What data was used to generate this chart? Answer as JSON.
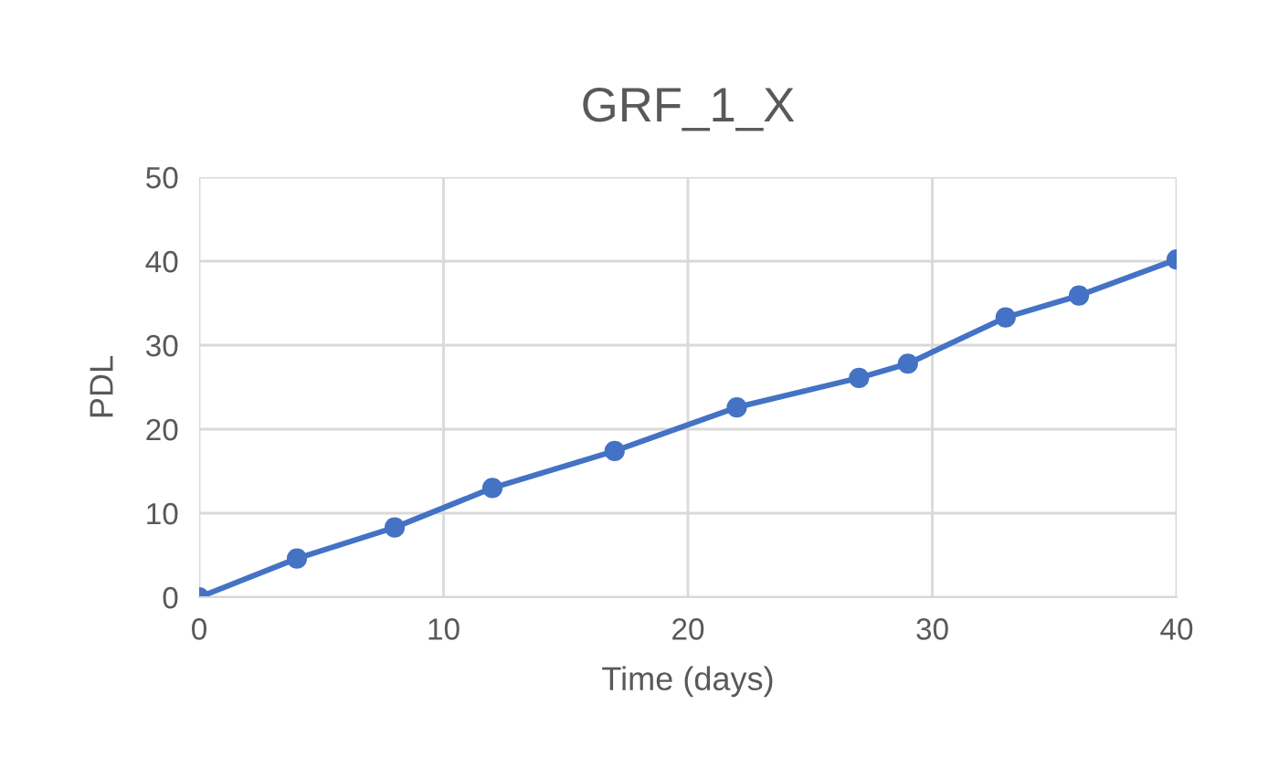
{
  "chart_data": {
    "type": "line",
    "title": "GRF_1_X",
    "xlabel": "Time (days)",
    "ylabel": "PDL",
    "x": [
      0,
      4,
      8,
      12,
      17,
      22,
      27,
      29,
      33,
      36,
      40
    ],
    "series": [
      {
        "color": "#4472c4",
        "values": [
          0,
          4.6,
          8.3,
          13.0,
          17.4,
          22.6,
          26.1,
          27.8,
          33.3,
          35.9,
          40.2
        ]
      }
    ],
    "xlim": [
      0,
      40
    ],
    "xticks": [
      0,
      10,
      20,
      30,
      40
    ],
    "ylim": [
      0,
      50
    ],
    "yticks": [
      0,
      10,
      20,
      30,
      40,
      50
    ],
    "grid": true,
    "marker": "circle",
    "line_style": "solid"
  }
}
